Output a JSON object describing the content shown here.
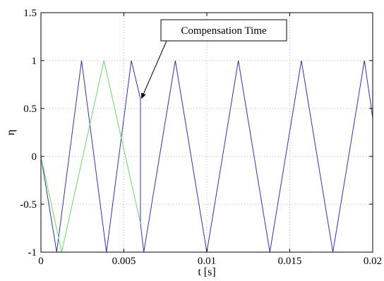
{
  "chart_data": {
    "type": "line",
    "title": "",
    "xlabel": "t [s]",
    "ylabel": "η",
    "xlim": [
      0,
      0.02
    ],
    "ylim": [
      -1,
      1.5
    ],
    "xticks": [
      0,
      0.005,
      0.01,
      0.015,
      0.02
    ],
    "xtick_labels": [
      "0",
      "0.005",
      "0.01",
      "0.015",
      "0.02"
    ],
    "yticks": [
      -1,
      -0.5,
      0,
      0.5,
      1,
      1.5
    ],
    "ytick_labels": [
      "-1",
      "-0.5",
      "0",
      "0.5",
      "1",
      "1.5"
    ],
    "grid": true,
    "legend": "none",
    "series": [
      {
        "color": "#3333aa",
        "x": [
          0,
          0.00095,
          0.00245,
          0.00395,
          0.00545,
          0.006,
          0.006,
          0.0062,
          0.0081,
          0.01,
          0.0119,
          0.0138,
          0.0157,
          0.0176,
          0.0195,
          0.02
        ],
        "y": [
          0,
          -1,
          1,
          -1,
          1,
          0.6,
          -0.7,
          -1,
          1,
          -1,
          1,
          -1,
          1,
          -1,
          1,
          0.4
        ]
      },
      {
        "color": "#66dd66",
        "x": [
          0,
          0.00125,
          0.0038,
          0.006
        ],
        "y": [
          0,
          -1,
          1,
          -0.7
        ]
      }
    ],
    "annotations": [
      {
        "text": "Compensation Time",
        "target_x": 0.00605,
        "target_y": 0.6
      }
    ]
  }
}
